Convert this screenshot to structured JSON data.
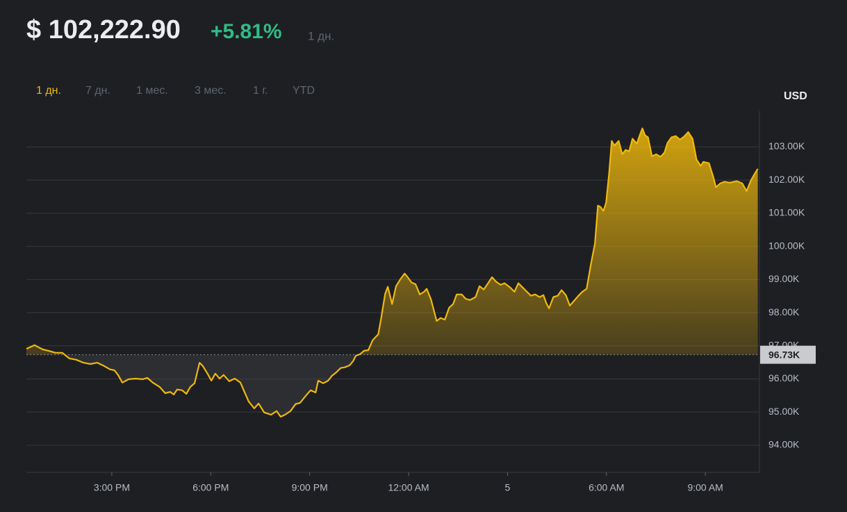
{
  "header": {
    "price": "$ 102,222.90",
    "change": "+5.81%",
    "period": "1 дн."
  },
  "tabs": {
    "items": [
      "1 дн.",
      "7 дн.",
      "1 мес.",
      "3 мес.",
      "1 г.",
      "YTD"
    ],
    "active": 0
  },
  "chart_data": {
    "type": "area",
    "y_label": "USD",
    "color": "#f0b90b",
    "grid": true,
    "xlim": [
      12.41,
      34.64
    ],
    "ylim": [
      93180,
      104080
    ],
    "xticks": [
      {
        "value": 15,
        "label": "3:00 PM"
      },
      {
        "value": 18,
        "label": "6:00 PM"
      },
      {
        "value": 21,
        "label": "9:00 PM"
      },
      {
        "value": 24,
        "label": "12:00 AM"
      },
      {
        "value": 27,
        "label": "5"
      },
      {
        "value": 30,
        "label": "6:00 AM"
      },
      {
        "value": 33,
        "label": "9:00 AM"
      }
    ],
    "yticks": [
      {
        "value": 94000,
        "label": "94.00K"
      },
      {
        "value": 95000,
        "label": "95.00K"
      },
      {
        "value": 96000,
        "label": "96.00K"
      },
      {
        "value": 97000,
        "label": "97.00K"
      },
      {
        "value": 98000,
        "label": "98.00K"
      },
      {
        "value": 99000,
        "label": "99.00K"
      },
      {
        "value": 100000,
        "label": "100.00K"
      },
      {
        "value": 101000,
        "label": "101.00K"
      },
      {
        "value": 102000,
        "label": "102.00K"
      },
      {
        "value": 103000,
        "label": "103.00K"
      }
    ],
    "baseline": {
      "value": 96730,
      "label": "96.73K"
    },
    "x": [
      12.41,
      12.66,
      12.77,
      12.91,
      13.08,
      13.29,
      13.5,
      13.61,
      13.71,
      13.92,
      14.14,
      14.35,
      14.56,
      14.77,
      14.94,
      15.08,
      15.19,
      15.32,
      15.51,
      15.72,
      15.93,
      16.08,
      16.24,
      16.45,
      16.62,
      16.77,
      16.88,
      16.98,
      17.13,
      17.26,
      17.38,
      17.51,
      17.66,
      17.76,
      17.89,
      18.02,
      18.14,
      18.27,
      18.39,
      18.56,
      18.73,
      18.9,
      19.03,
      19.15,
      19.32,
      19.45,
      19.62,
      19.83,
      20.0,
      20.12,
      20.25,
      20.42,
      20.57,
      20.71,
      20.88,
      21.03,
      21.18,
      21.26,
      21.41,
      21.56,
      21.68,
      21.81,
      21.94,
      22.06,
      22.21,
      22.32,
      22.4,
      22.53,
      22.65,
      22.78,
      22.91,
      23.08,
      23.16,
      23.29,
      23.37,
      23.5,
      23.62,
      23.75,
      23.88,
      23.96,
      24.09,
      24.21,
      24.34,
      24.47,
      24.55,
      24.68,
      24.85,
      24.97,
      25.1,
      25.23,
      25.35,
      25.46,
      25.61,
      25.73,
      25.86,
      26.03,
      26.15,
      26.28,
      26.41,
      26.53,
      26.66,
      26.79,
      26.91,
      27.08,
      27.21,
      27.33,
      27.46,
      27.59,
      27.71,
      27.84,
      27.97,
      28.09,
      28.18,
      28.26,
      28.39,
      28.52,
      28.64,
      28.77,
      28.89,
      29.02,
      29.15,
      29.27,
      29.4,
      29.53,
      29.65,
      29.74,
      29.82,
      29.91,
      29.99,
      30.08,
      30.16,
      30.24,
      30.37,
      30.48,
      30.58,
      30.69,
      30.79,
      30.92,
      31.0,
      31.09,
      31.17,
      31.26,
      31.38,
      31.51,
      31.64,
      31.76,
      31.85,
      31.97,
      32.1,
      32.23,
      32.35,
      32.48,
      32.61,
      32.73,
      32.86,
      32.94,
      33.11,
      33.24,
      33.32,
      33.45,
      33.58,
      33.74,
      33.95,
      34.12,
      34.25,
      34.38,
      34.5,
      34.59
    ],
    "values": [
      96910,
      97020,
      96960,
      96890,
      96850,
      96790,
      96790,
      96700,
      96620,
      96580,
      96490,
      96450,
      96490,
      96390,
      96290,
      96260,
      96120,
      95890,
      95990,
      96010,
      95990,
      96030,
      95890,
      95760,
      95570,
      95610,
      95530,
      95680,
      95660,
      95550,
      95760,
      95870,
      96490,
      96390,
      96180,
      95950,
      96160,
      96010,
      96120,
      95930,
      96010,
      95890,
      95590,
      95320,
      95110,
      95260,
      94990,
      94920,
      95030,
      94860,
      94920,
      95030,
      95240,
      95280,
      95490,
      95660,
      95590,
      95950,
      95870,
      95950,
      96100,
      96200,
      96330,
      96350,
      96410,
      96540,
      96700,
      96750,
      96850,
      96870,
      97170,
      97350,
      97790,
      98570,
      98780,
      98260,
      98800,
      99010,
      99180,
      99090,
      98910,
      98860,
      98550,
      98630,
      98720,
      98400,
      97750,
      97840,
      97790,
      98150,
      98260,
      98550,
      98550,
      98420,
      98380,
      98470,
      98800,
      98700,
      98890,
      99070,
      98930,
      98840,
      98890,
      98760,
      98630,
      98890,
      98760,
      98630,
      98510,
      98550,
      98470,
      98530,
      98280,
      98130,
      98470,
      98510,
      98680,
      98530,
      98210,
      98360,
      98510,
      98630,
      98720,
      99470,
      100080,
      101230,
      101190,
      101070,
      101320,
      102200,
      103180,
      103040,
      103180,
      102780,
      102910,
      102870,
      103250,
      103100,
      103330,
      103560,
      103350,
      103290,
      102720,
      102780,
      102700,
      102830,
      103120,
      103290,
      103330,
      103220,
      103310,
      103450,
      103250,
      102620,
      102430,
      102550,
      102510,
      102090,
      101780,
      101900,
      101950,
      101920,
      101970,
      101900,
      101670,
      101990,
      102200,
      102340
    ]
  }
}
